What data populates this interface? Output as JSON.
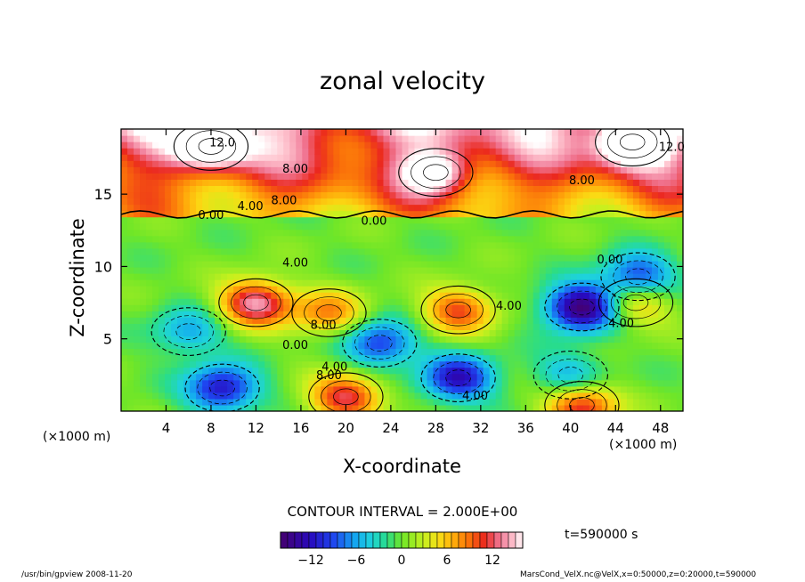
{
  "chart_data": {
    "type": "heatmap",
    "title": "zonal velocity",
    "xlabel": "X-coordinate",
    "ylabel": "Z-coordinate",
    "x_unit_left": "(×1000 m)",
    "x_unit_right": "(×1000 m)",
    "xlim": [
      0,
      50
    ],
    "ylim": [
      0,
      19.5
    ],
    "x_ticks": [
      "4",
      "8",
      "12",
      "16",
      "20",
      "24",
      "28",
      "32",
      "36",
      "40",
      "44",
      "48"
    ],
    "x_tick_values": [
      4,
      8,
      12,
      16,
      20,
      24,
      28,
      32,
      36,
      40,
      44,
      48
    ],
    "y_ticks": [
      "5",
      "10",
      "15"
    ],
    "y_tick_values": [
      5,
      10,
      15
    ],
    "contour_interval": "CONTOUR INTERVAL = 2.000E+00",
    "time_label": "t=590000 s",
    "colorbar": {
      "min": -16,
      "max": 16,
      "ticks": [
        "−12",
        "−6",
        "0",
        "6",
        "12"
      ],
      "tick_values": [
        -12,
        -6,
        0,
        6,
        12
      ]
    },
    "contour_labels": [
      {
        "text": "12.0",
        "x": 9,
        "y": 18.3
      },
      {
        "text": "12.0",
        "x": 49,
        "y": 18.0
      },
      {
        "text": "8.00",
        "x": 15.5,
        "y": 16.5
      },
      {
        "text": "8.00",
        "x": 41,
        "y": 15.7
      },
      {
        "text": "4.00",
        "x": 11.5,
        "y": 13.9
      },
      {
        "text": "8.00",
        "x": 14.5,
        "y": 14.3
      },
      {
        "text": "0.00",
        "x": 8,
        "y": 13.3
      },
      {
        "text": "0.00",
        "x": 22.5,
        "y": 12.9
      },
      {
        "text": "0.00",
        "x": 43.5,
        "y": 10.2
      },
      {
        "text": "4.00",
        "x": 15.5,
        "y": 10.0
      },
      {
        "text": "4.00",
        "x": 34.5,
        "y": 7.0
      },
      {
        "text": "4.00",
        "x": 44.5,
        "y": 5.8
      },
      {
        "text": "8.00",
        "x": 18,
        "y": 5.7
      },
      {
        "text": "0.00",
        "x": 15.5,
        "y": 4.3
      },
      {
        "text": "4.00",
        "x": 19,
        "y": 2.8
      },
      {
        "text": "8.00",
        "x": 18.5,
        "y": 2.2
      },
      {
        "text": "4.00",
        "x": 31.5,
        "y": 0.8
      }
    ],
    "features": [
      {
        "x": 12,
        "y": 7.5,
        "value": 14
      },
      {
        "x": 18.5,
        "y": 6.8,
        "value": 8
      },
      {
        "x": 30,
        "y": 7,
        "value": 10
      },
      {
        "x": 41,
        "y": 7.2,
        "value": -16
      },
      {
        "x": 46,
        "y": 9.3,
        "value": -10
      },
      {
        "x": 45.8,
        "y": 7.5,
        "value": 7
      },
      {
        "x": 9,
        "y": 1.6,
        "value": -12
      },
      {
        "x": 23,
        "y": 4.7,
        "value": -10
      },
      {
        "x": 30,
        "y": 2.3,
        "value": -12
      },
      {
        "x": 40,
        "y": 2.5,
        "value": -6
      },
      {
        "x": 20,
        "y": 1.0,
        "value": 12
      },
      {
        "x": 41,
        "y": 0.4,
        "value": 12
      },
      {
        "x": 6,
        "y": 5.5,
        "value": -6
      },
      {
        "x": 8,
        "y": 18.3,
        "value": 14
      },
      {
        "x": 45.5,
        "y": 18.6,
        "value": 16
      },
      {
        "x": 28,
        "y": 16.5,
        "value": 12
      }
    ],
    "grid": false,
    "legend": "colorbar bottom-center"
  },
  "footer": {
    "left": "/usr/bin/gpview   2008-11-20",
    "right": "MarsCond_VelX.nc@VelX,x=0:50000,z=0:20000,t=590000"
  }
}
